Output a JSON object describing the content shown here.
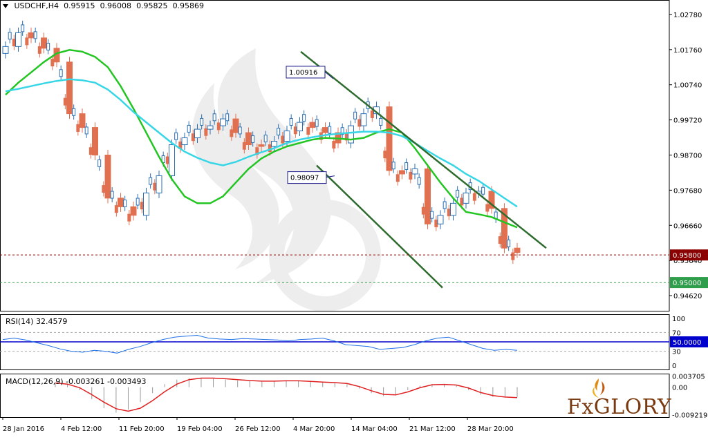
{
  "header": {
    "symbol": "USDCHF,H4",
    "open": "0.95915",
    "high": "0.96008",
    "low": "0.95825",
    "close": "0.95869"
  },
  "rsi_label": "RSI(14) 32.4579",
  "macd_label": "MACD(12,26,9) -0.003261 -0.003493",
  "brand": "FxGLORY",
  "chart_data": [
    {
      "type": "candlestick",
      "price_ticks": [
        "1.02780",
        "1.01760",
        "1.00740",
        "0.99720",
        "0.98700",
        "0.97680",
        "0.96660",
        "0.95640",
        "0.94620"
      ],
      "ylim": [
        0.9418,
        1.032
      ],
      "x_labels": [
        "28 Jan 2016",
        "4 Feb 12:00",
        "11 Feb 20:00",
        "19 Feb 04:00",
        "26 Feb 12:00",
        "4 Mar 20:00",
        "14 Mar 04:00",
        "21 Mar 12:00",
        "28 Mar 20:00"
      ],
      "levels": [
        {
          "value": "0.95800",
          "color": "#8b0000",
          "style": "dashed",
          "label_bg": "#8b0000"
        },
        {
          "value": "0.95000",
          "color": "#2e9e4a",
          "style": "dashed",
          "label_bg": "#2e9e4a"
        }
      ],
      "annotations": [
        {
          "text": "1.00916",
          "value": 1.00916
        },
        {
          "text": "0.98097",
          "value": 0.98097
        }
      ],
      "channel_color": "#2e6b2e",
      "series": [
        {
          "kind": "ma",
          "color": "#22c522",
          "values": [
            1.0045,
            1.008,
            1.011,
            1.014,
            1.0165,
            1.0175,
            1.017,
            1.0155,
            1.0125,
            1.007,
            1.0005,
            0.9935,
            0.9865,
            0.98,
            0.975,
            0.973,
            0.973,
            0.975,
            0.979,
            0.983,
            0.986,
            0.988,
            0.9895,
            0.9905,
            0.9915,
            0.992,
            0.9918,
            0.9915,
            0.992,
            0.9935,
            0.9945,
            0.9935,
            0.989,
            0.984,
            0.979,
            0.9745,
            0.9705,
            0.9698,
            0.969,
            0.9675,
            0.966
          ]
        },
        {
          "kind": "ma",
          "color": "#37d6e6",
          "values": [
            1.0055,
            1.0062,
            1.007,
            1.0078,
            1.0085,
            1.009,
            1.0087,
            1.008,
            1.006,
            1.003,
            0.9995,
            0.9965,
            0.9935,
            0.9905,
            0.988,
            0.9862,
            0.9848,
            0.984,
            0.985,
            0.9865,
            0.9878,
            0.989,
            0.9905,
            0.9915,
            0.9922,
            0.9928,
            0.9932,
            0.9935,
            0.9938,
            0.9938,
            0.9935,
            0.9925,
            0.9905,
            0.9882,
            0.986,
            0.984,
            0.9815,
            0.9795,
            0.977,
            0.9745,
            0.972
          ]
        },
        {
          "kind": "close",
          "color": "#cccccc",
          "values": [
            1.0185,
            1.0225,
            1.021,
            1.018,
            1.014,
            0.999,
            0.995,
            0.987,
            0.9745,
            0.972,
            0.9695,
            0.976,
            0.981,
            0.99,
            0.992,
            0.9945,
            0.9955,
            0.9975,
            0.9935,
            0.99,
            0.9895,
            0.991,
            0.994,
            0.9965,
            0.995,
            0.9935,
            0.9905,
            0.9955,
            0.999,
            1.001,
            0.9825,
            0.9815,
            0.983,
            0.967,
            0.9695,
            0.973,
            0.976,
            0.9765,
            0.9715,
            0.96,
            0.9587
          ]
        }
      ]
    },
    {
      "type": "line",
      "title": "RSI(14) 32.4579",
      "ticks": [
        "100",
        "70",
        "50",
        "30",
        "0"
      ],
      "ylim": [
        0,
        100
      ],
      "level": {
        "value": 50,
        "label": "50.0000",
        "color": "#0000cc"
      },
      "series": [
        {
          "name": "RSI(14)",
          "color": "#1e6fe8",
          "values": [
            55,
            58,
            54,
            48,
            42,
            35,
            30,
            28,
            32,
            30,
            26,
            34,
            40,
            48,
            55,
            60,
            62,
            64,
            58,
            56,
            55,
            57,
            56,
            55,
            54,
            52,
            55,
            56,
            58,
            52,
            44,
            42,
            40,
            34,
            36,
            38,
            44,
            52,
            58,
            60,
            52,
            44,
            36,
            32,
            34,
            32
          ]
        }
      ]
    },
    {
      "type": "bar",
      "title": "MACD(12,26,9) -0.003261 -0.003493",
      "ticks": [
        "0.003705",
        "0.00",
        "-0.009219"
      ],
      "ylim": [
        -0.01,
        0.0045
      ],
      "series": [
        {
          "name": "MACD",
          "kind": "histogram",
          "color": "#999999",
          "values": [
            0.0012,
            0.0008,
            -0.001,
            -0.004,
            -0.007,
            -0.0085,
            -0.0075,
            -0.005,
            -0.002,
            0.001,
            0.0025,
            0.003,
            0.003,
            0.0028,
            0.0025,
            0.0022,
            0.002,
            0.0018,
            0.002,
            0.0022,
            0.002,
            0.0018,
            0.0016,
            0.0014,
            0.001,
            -0.0005,
            -0.002,
            -0.003,
            -0.0025,
            -0.001,
            0.0005,
            0.001,
            0.0008,
            0.0005,
            -0.001,
            -0.0025,
            -0.0032,
            -0.0034,
            -0.0033
          ]
        },
        {
          "name": "Signal",
          "kind": "line",
          "color": "#e02020",
          "values": [
            0.0014,
            0.001,
            -0.0002,
            -0.0025,
            -0.005,
            -0.0072,
            -0.008,
            -0.007,
            -0.0045,
            -0.0015,
            0.001,
            0.0025,
            0.003,
            0.003,
            0.0028,
            0.0025,
            0.0022,
            0.002,
            0.002,
            0.0021,
            0.0021,
            0.0019,
            0.0017,
            0.0015,
            0.0012,
            0.0002,
            -0.0012,
            -0.0024,
            -0.0026,
            -0.0016,
            -0.0002,
            0.0008,
            0.0009,
            0.0007,
            -0.0003,
            -0.0018,
            -0.0028,
            -0.0033,
            -0.0035
          ]
        }
      ]
    }
  ]
}
